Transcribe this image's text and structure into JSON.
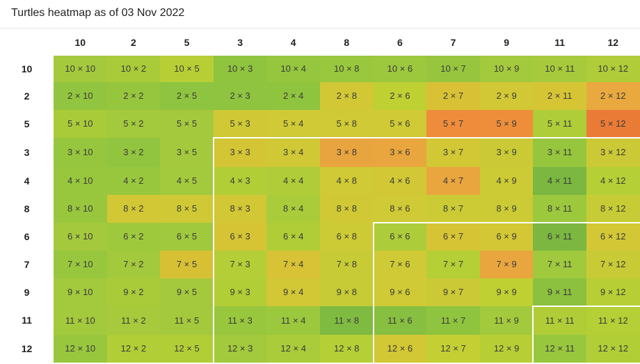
{
  "header": {
    "title": "Turtles heatmap as of 03 Nov 2022"
  },
  "chart_data": {
    "type": "heatmap",
    "title": "Turtles heatmap as of 03 Nov 2022",
    "x": [
      "10",
      "2",
      "5",
      "3",
      "4",
      "8",
      "6",
      "7",
      "9",
      "11",
      "12"
    ],
    "y": [
      "10",
      "2",
      "5",
      "3",
      "4",
      "8",
      "6",
      "7",
      "9",
      "11",
      "12"
    ],
    "cell_labels": [
      [
        "10 × 10",
        "10 × 2",
        "10 × 5",
        "10 × 3",
        "10 × 4",
        "10 × 8",
        "10 × 6",
        "10 × 7",
        "10 × 9",
        "10 × 11",
        "10 × 12"
      ],
      [
        "2 × 10",
        "2 × 2",
        "2 × 5",
        "2 × 3",
        "2 × 4",
        "2 × 8",
        "2 × 6",
        "2 × 7",
        "2 × 9",
        "2 × 11",
        "2 × 12"
      ],
      [
        "5 × 10",
        "5 × 2",
        "5 × 5",
        "5 × 3",
        "5 × 4",
        "5 × 8",
        "5 × 6",
        "5 × 7",
        "5 × 9",
        "5 × 11",
        "5 × 12"
      ],
      [
        "3 × 10",
        "3 × 2",
        "3 × 5",
        "3 × 3",
        "3 × 4",
        "3 × 8",
        "3 × 6",
        "3 × 7",
        "3 × 9",
        "3 × 11",
        "3 × 12"
      ],
      [
        "4 × 10",
        "4 × 2",
        "4 × 5",
        "4 × 3",
        "4 × 4",
        "4 × 8",
        "4 × 6",
        "4 × 7",
        "4 × 9",
        "4 × 11",
        "4 × 12"
      ],
      [
        "8 × 10",
        "8 × 2",
        "8 × 5",
        "8 × 3",
        "8 × 4",
        "8 × 8",
        "8 × 6",
        "8 × 7",
        "8 × 9",
        "8 × 11",
        "8 × 12"
      ],
      [
        "6 × 10",
        "6 × 2",
        "6 × 5",
        "6 × 3",
        "6 × 4",
        "6 × 8",
        "6 × 6",
        "6 × 7",
        "6 × 9",
        "6 × 11",
        "6 × 12"
      ],
      [
        "7 × 10",
        "7 × 2",
        "7 × 5",
        "7 × 3",
        "7 × 4",
        "7 × 8",
        "7 × 6",
        "7 × 7",
        "7 × 9",
        "7 × 11",
        "7 × 12"
      ],
      [
        "9 × 10",
        "9 × 2",
        "9 × 5",
        "9 × 3",
        "9 × 4",
        "9 × 8",
        "9 × 6",
        "9 × 7",
        "9 × 9",
        "9 × 11",
        "9 × 12"
      ],
      [
        "11 × 10",
        "11 × 2",
        "11 × 5",
        "11 × 3",
        "11 × 4",
        "11 × 8",
        "11 × 6",
        "11 × 7",
        "11 × 9",
        "11 × 11",
        "11 × 12"
      ],
      [
        "12 × 10",
        "12 × 2",
        "12 × 5",
        "12 × 3",
        "12 × 4",
        "12 × 8",
        "12 × 6",
        "12 × 7",
        "12 × 9",
        "12 × 11",
        "12 × 12"
      ]
    ],
    "colors": [
      [
        "#a5c93d",
        "#a9cb3a",
        "#b7cf35",
        "#8fc43f",
        "#95c63e",
        "#99c73e",
        "#9cc83e",
        "#97c63e",
        "#a3c93d",
        "#a7ca3c",
        "#b0cc39"
      ],
      [
        "#92c53f",
        "#96c63e",
        "#8ec43f",
        "#8ec43f",
        "#8fc43f",
        "#d2c735",
        "#bfd033",
        "#d9c136",
        "#d2c735",
        "#d5c535",
        "#e9a93f"
      ],
      [
        "#a9cb3a",
        "#a3c93d",
        "#a5c93d",
        "#d0c935",
        "#cfca35",
        "#cfca35",
        "#cfca35",
        "#ef8c3b",
        "#ee8e3b",
        "#afcd38",
        "#ea7b36"
      ],
      [
        "#96c63e",
        "#92c53f",
        "#a5c93d",
        "#d4c535",
        "#d0c935",
        "#e8a43f",
        "#e9a63f",
        "#d2c735",
        "#cbca36",
        "#95c63e",
        "#ccc936"
      ],
      [
        "#98c73e",
        "#98c73e",
        "#a3c93d",
        "#b2ce37",
        "#b0cc39",
        "#cfca35",
        "#d2c735",
        "#e9a63f",
        "#cccb35",
        "#7bb741",
        "#b5cf36"
      ],
      [
        "#98c73e",
        "#d2c735",
        "#d0c935",
        "#d2c735",
        "#aacc3a",
        "#d0c935",
        "#cfca35",
        "#cccb35",
        "#cccb35",
        "#9cc83e",
        "#c7cb35"
      ],
      [
        "#a5c93d",
        "#9fc93d",
        "#a0c93d",
        "#d6c435",
        "#b0cd38",
        "#cccb35",
        "#adcc39",
        "#d6c435",
        "#d3c735",
        "#7bb741",
        "#d3c735"
      ],
      [
        "#98c73e",
        "#a3c93d",
        "#d8c035",
        "#b4ce37",
        "#d8c235",
        "#c7cb35",
        "#cfca35",
        "#b5cf36",
        "#e9a63f",
        "#a0c93d",
        "#c8cb35"
      ],
      [
        "#a3c93d",
        "#a9cb3a",
        "#a5c93d",
        "#b2ce37",
        "#d2c735",
        "#c7cb35",
        "#cfca35",
        "#ccc936",
        "#bfd033",
        "#8bc13f",
        "#b7cf35"
      ],
      [
        "#a3c93d",
        "#a7ca3c",
        "#a5c93d",
        "#98c73e",
        "#9cc83e",
        "#7fba41",
        "#87bf40",
        "#8fc43f",
        "#a3c93d",
        "#b0cd38",
        "#b5cf36"
      ],
      [
        "#98c73e",
        "#b2ce37",
        "#b2ce37",
        "#a3c93d",
        "#aacc3a",
        "#b5cf36",
        "#d2c735",
        "#c4cf33",
        "#b7cf35",
        "#98c73e",
        "#b2ce37"
      ]
    ],
    "nested_regions": [
      {
        "from_index": 3
      },
      {
        "from_index": 6
      },
      {
        "from_index": 9
      }
    ]
  }
}
